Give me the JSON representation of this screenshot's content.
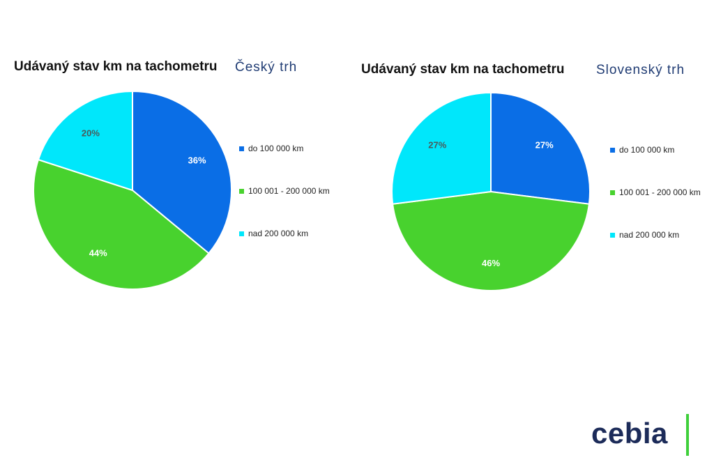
{
  "chart_data": [
    {
      "type": "pie",
      "title": "Udávaný stav km na tachometru",
      "subtitle": "Český trh",
      "categories": [
        "do 100 000 km",
        "100 001 - 200 000 km",
        "nad 200 000 km"
      ],
      "values": [
        36,
        44,
        20
      ],
      "value_labels": [
        "36%",
        "44%",
        "20%"
      ],
      "colors": [
        "#0a6ee6",
        "#48d22e",
        "#00e7fb"
      ],
      "label_colors": [
        "#ffffff",
        "#ffffff",
        "#4a5a5a"
      ],
      "legend": "right"
    },
    {
      "type": "pie",
      "title": "Udávaný stav km na tachometru",
      "subtitle": "Slovenský trh",
      "categories": [
        "do 100 000 km",
        "100 001 - 200 000 km",
        "nad 200 000 km"
      ],
      "values": [
        27,
        46,
        27
      ],
      "value_labels": [
        "27%",
        "46%",
        "27%"
      ],
      "colors": [
        "#0a6ee6",
        "#48d22e",
        "#00e7fb"
      ],
      "label_colors": [
        "#ffffff",
        "#ffffff",
        "#4a5a5a"
      ],
      "legend": "right"
    }
  ],
  "logo": {
    "text": "cebia",
    "bar_color": "#3ecf3a"
  }
}
